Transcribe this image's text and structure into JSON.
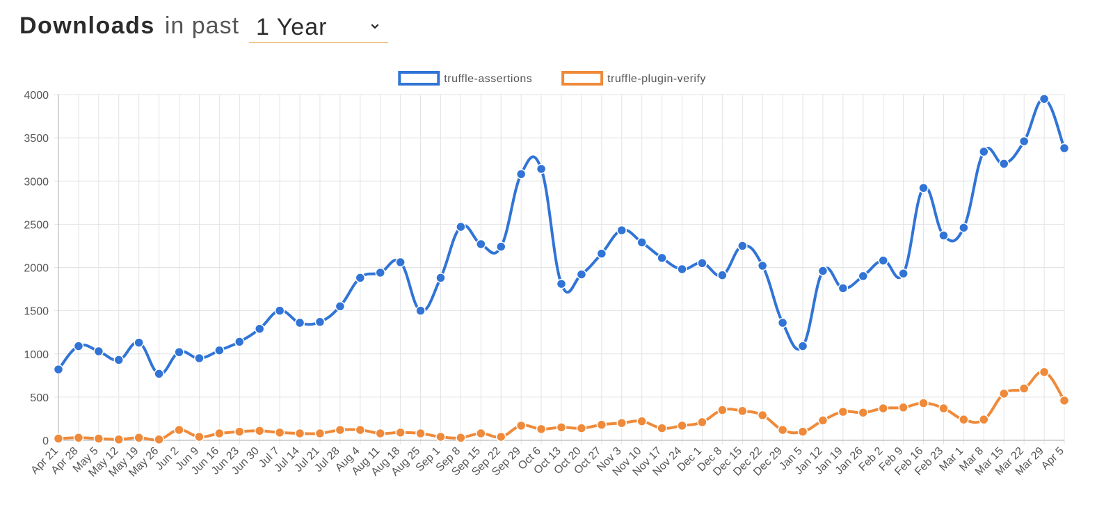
{
  "header": {
    "title_strong": "Downloads",
    "title_rest": "in past",
    "period_selected": "1 Year",
    "chevron_icon": "chevron-down-icon"
  },
  "chart_data": {
    "type": "line",
    "title": "",
    "xlabel": "",
    "ylabel": "",
    "ylim": [
      0,
      4000
    ],
    "yticks": [
      0,
      500,
      1000,
      1500,
      2000,
      2500,
      3000,
      3500,
      4000
    ],
    "grid": true,
    "legend_position": "top-center",
    "categories": [
      "Apr 21",
      "Apr 28",
      "May 5",
      "May 12",
      "May 19",
      "May 26",
      "Jun 2",
      "Jun 9",
      "Jun 16",
      "Jun 23",
      "Jun 30",
      "Jul 7",
      "Jul 14",
      "Jul 21",
      "Jul 28",
      "Aug 4",
      "Aug 11",
      "Aug 18",
      "Aug 25",
      "Sep 1",
      "Sep 8",
      "Sep 15",
      "Sep 22",
      "Sep 29",
      "Oct 6",
      "Oct 13",
      "Oct 20",
      "Oct 27",
      "Nov 3",
      "Nov 10",
      "Nov 17",
      "Nov 24",
      "Dec 1",
      "Dec 8",
      "Dec 15",
      "Dec 22",
      "Dec 29",
      "Jan 5",
      "Jan 12",
      "Jan 19",
      "Jan 26",
      "Feb 2",
      "Feb 9",
      "Feb 16",
      "Feb 23",
      "Mar 1",
      "Mar 8",
      "Mar 15",
      "Mar 22",
      "Mar 29",
      "Apr 5"
    ],
    "series": [
      {
        "name": "truffle-assertions",
        "color": "#3174d6",
        "values": [
          820,
          1090,
          1030,
          930,
          1130,
          770,
          1020,
          950,
          1040,
          1140,
          1290,
          1500,
          1360,
          1370,
          1550,
          1880,
          1940,
          2060,
          1500,
          1880,
          2470,
          2270,
          2240,
          3080,
          3140,
          1810,
          1920,
          2160,
          2430,
          2290,
          2110,
          1980,
          2050,
          1910,
          2250,
          2020,
          1360,
          1090,
          1960,
          1760,
          1900,
          2080,
          1930,
          2920,
          2370,
          2460,
          3340,
          3200,
          3460,
          3950,
          3380
        ]
      },
      {
        "name": "truffle-plugin-verify",
        "color": "#ef8a3a",
        "values": [
          20,
          30,
          20,
          10,
          30,
          10,
          120,
          40,
          80,
          100,
          110,
          90,
          80,
          80,
          120,
          120,
          80,
          90,
          80,
          40,
          30,
          80,
          40,
          170,
          130,
          150,
          140,
          180,
          200,
          220,
          140,
          170,
          210,
          350,
          340,
          290,
          120,
          100,
          230,
          330,
          320,
          370,
          380,
          430,
          370,
          240,
          240,
          540,
          600,
          790,
          460
        ]
      }
    ]
  }
}
